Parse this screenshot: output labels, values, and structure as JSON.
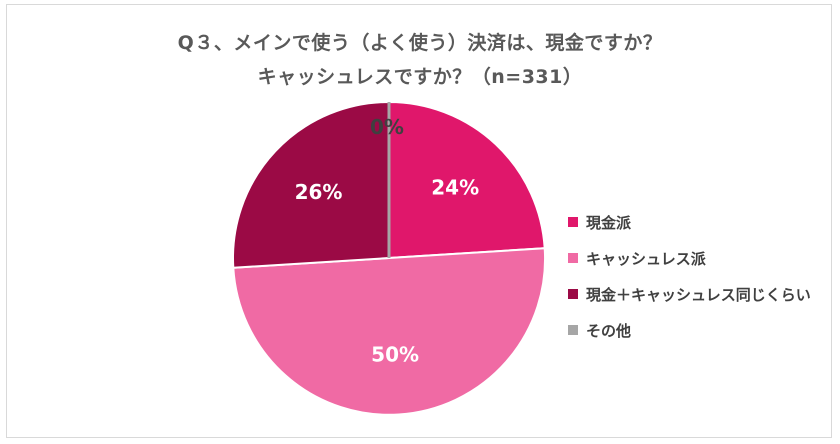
{
  "chart_data": {
    "type": "pie",
    "title_lines": [
      "Q３、メインで使う（よく使う）決済は、現金ですか？",
      "キャッシュレスですか？（n=331）"
    ],
    "categories": [
      "現金派",
      "キャッシュレス派",
      "現金＋キャッシュレス同じくらい",
      "その他"
    ],
    "values": [
      24,
      50,
      26,
      0
    ],
    "data_labels": [
      "24%",
      "50%",
      "26%",
      "0%"
    ],
    "colors": [
      "#e0176b",
      "#f06aa4",
      "#9b0a45",
      "#a6a6a6"
    ],
    "label_colors": [
      "#ffffff",
      "#ffffff",
      "#ffffff",
      "#404040"
    ],
    "legend_position": "right",
    "start": "top",
    "direction": "clockwise"
  }
}
